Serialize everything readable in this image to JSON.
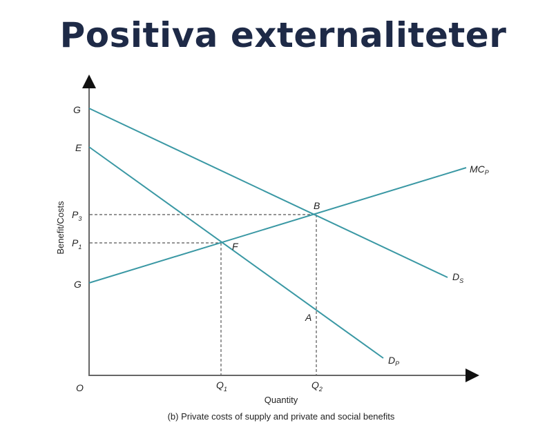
{
  "title": "Positiva externaliteter",
  "diagram": {
    "y_axis_label": "Benefit/Costs",
    "x_axis_label": "Quantity",
    "caption": "(b) Private costs of supply and private and social benefits",
    "origin_label": "O",
    "y_labels": {
      "g_top": "G",
      "e": "E",
      "p3": "P",
      "p3_sub": "3",
      "p1": "P",
      "p1_sub": "1",
      "g_bottom": "G"
    },
    "x_labels": {
      "q1": "Q",
      "q1_sub": "1",
      "q2": "Q",
      "q2_sub": "2"
    },
    "points": {
      "b": "B",
      "f": "F",
      "a": "A"
    },
    "curves": {
      "ds": {
        "main": "D",
        "sub": "S"
      },
      "dp": {
        "main": "D",
        "sub": "P"
      },
      "mcp": {
        "main": "MC",
        "sub": "P"
      }
    },
    "line_color": "#3a98a4"
  }
}
